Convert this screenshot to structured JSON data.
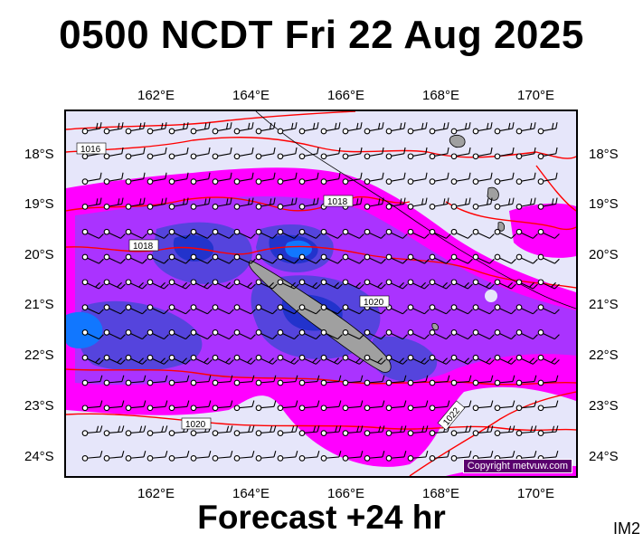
{
  "title": "0500 NCDT Fri 22 Aug 2025",
  "footer": "Forecast +24 hr",
  "product_id": "IM2",
  "copyright": "Copyright metvuw.com",
  "lon_labels": [
    "162°E",
    "164°E",
    "166°E",
    "168°E",
    "170°E"
  ],
  "lat_labels": [
    "18°S",
    "19°S",
    "20°S",
    "21°S",
    "22°S",
    "23°S",
    "24°S"
  ],
  "isobar_labels": [
    "1016",
    "1018",
    "1018",
    "1020",
    "1020",
    "1022"
  ],
  "colors": {
    "background": "#e6e6fa",
    "rain_light": "#ff00ff",
    "rain_medium": "#aa33ff",
    "rain_heavy": "#5544dd",
    "rain_very_heavy": "#2233cc",
    "rain_extreme": "#1177ff",
    "isobar": "#ff0000",
    "land": "#a0a0a0"
  }
}
